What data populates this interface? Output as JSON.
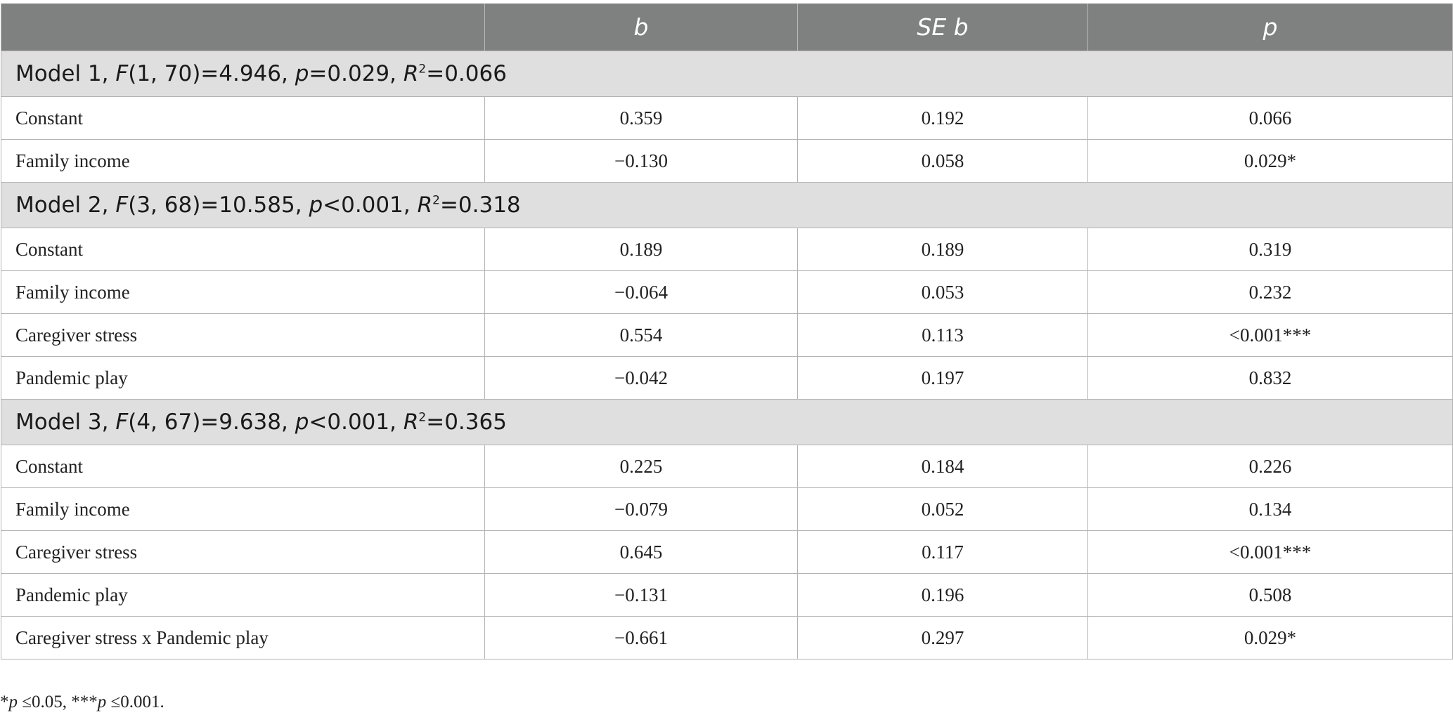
{
  "header": {
    "col0": "",
    "col1": "b",
    "col2": "SE b",
    "col3": "p"
  },
  "models": [
    {
      "heading": {
        "name": "Model 1, ",
        "f_sym": "F",
        "f_args": "(1, 70)=4.946, ",
        "p_sym": "p",
        "p_val": "=0.029, ",
        "r_sym": "R",
        "r_sup": "2",
        "r_val": "=0.066"
      },
      "rows": [
        {
          "label": "Constant",
          "b": "0.359",
          "se": "0.192",
          "p": "0.066"
        },
        {
          "label": "Family income",
          "b": "−0.130",
          "se": "0.058",
          "p": "0.029*"
        }
      ]
    },
    {
      "heading": {
        "name": "Model 2, ",
        "f_sym": "F",
        "f_args": "(3, 68)=10.585, ",
        "p_sym": "p",
        "p_val": "<0.001, ",
        "r_sym": "R",
        "r_sup": "2",
        "r_val": "=0.318"
      },
      "rows": [
        {
          "label": "Constant",
          "b": "0.189",
          "se": "0.189",
          "p": "0.319"
        },
        {
          "label": "Family income",
          "b": "−0.064",
          "se": "0.053",
          "p": "0.232"
        },
        {
          "label": "Caregiver stress",
          "b": "0.554",
          "se": "0.113",
          "p": "<0.001***"
        },
        {
          "label": "Pandemic play",
          "b": "−0.042",
          "se": "0.197",
          "p": "0.832"
        }
      ]
    },
    {
      "heading": {
        "name": "Model 3, ",
        "f_sym": "F",
        "f_args": "(4, 67)=9.638, ",
        "p_sym": "p",
        "p_val": "<0.001, ",
        "r_sym": "R",
        "r_sup": "2",
        "r_val": "=0.365"
      },
      "rows": [
        {
          "label": "Constant",
          "b": "0.225",
          "se": "0.184",
          "p": "0.226"
        },
        {
          "label": "Family income",
          "b": "−0.079",
          "se": "0.052",
          "p": "0.134"
        },
        {
          "label": "Caregiver stress",
          "b": "0.645",
          "se": "0.117",
          "p": "<0.001***"
        },
        {
          "label": "Pandemic play",
          "b": "−0.131",
          "se": "0.196",
          "p": "0.508"
        },
        {
          "label": "Caregiver stress x Pandemic play",
          "b": "−0.661",
          "se": "0.297",
          "p": "0.029*"
        }
      ]
    }
  ],
  "footnote": {
    "a_mark": "*",
    "a_sym": "p",
    "a_cond": " ≤0.05,  ",
    "b_mark": "***",
    "b_sym": "p",
    "b_cond": " ≤0.001."
  }
}
